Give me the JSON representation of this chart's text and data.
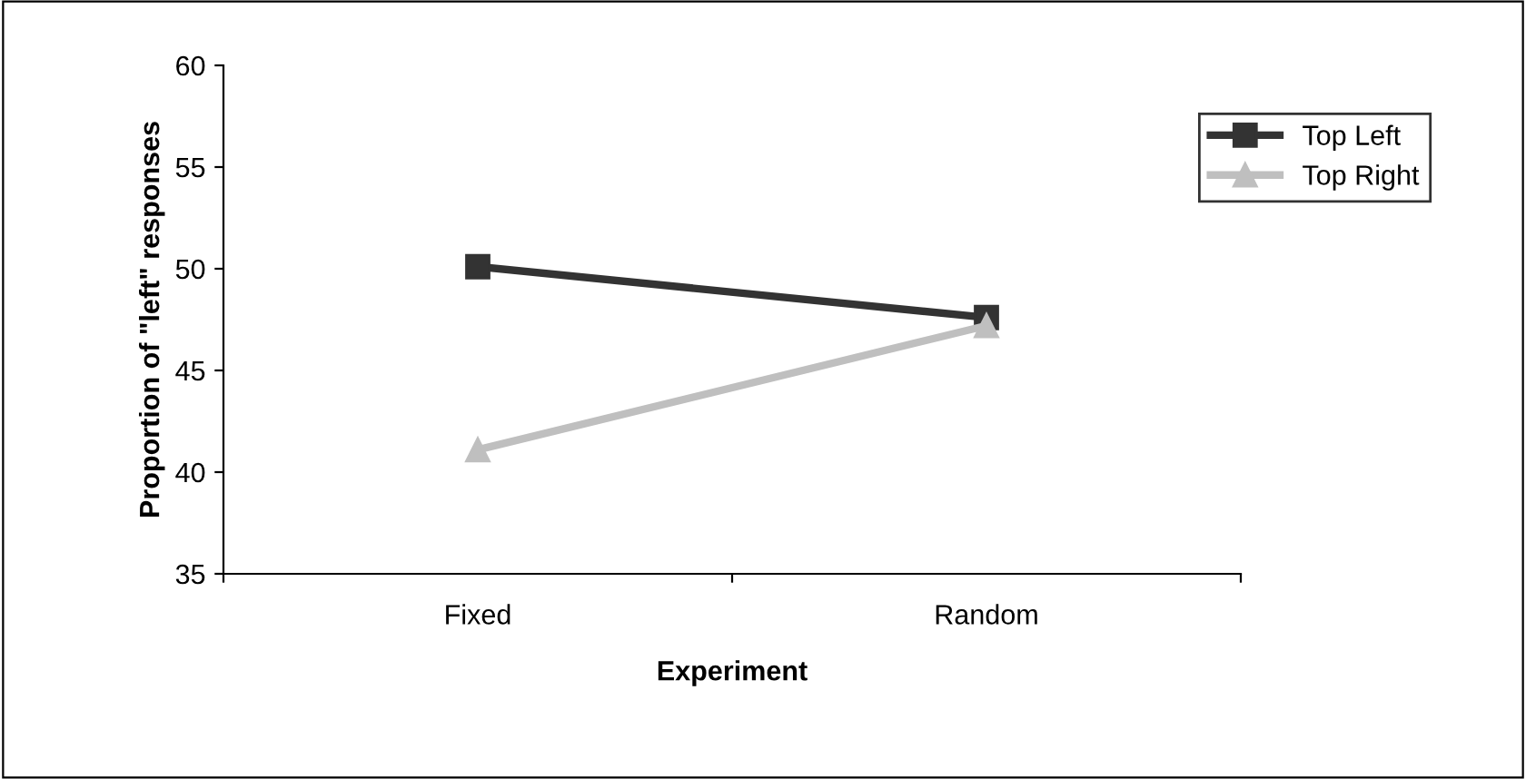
{
  "chart_data": {
    "type": "line",
    "xlabel": "Experiment",
    "ylabel": "Proportion of \"left\" responses",
    "categories": [
      "Fixed",
      "Random"
    ],
    "series": [
      {
        "name": "Top Left",
        "color": "#333333",
        "values": [
          50.1,
          47.6
        ],
        "marker": "square"
      },
      {
        "name": "Top Right",
        "color": "#bfbfbf",
        "values": [
          41.1,
          47.2
        ],
        "marker": "triangle"
      }
    ],
    "ylim": [
      35,
      60
    ],
    "yticks": [
      35,
      40,
      45,
      50,
      55,
      60
    ],
    "grid": false,
    "legend": "top right",
    "line_style": "solid"
  }
}
